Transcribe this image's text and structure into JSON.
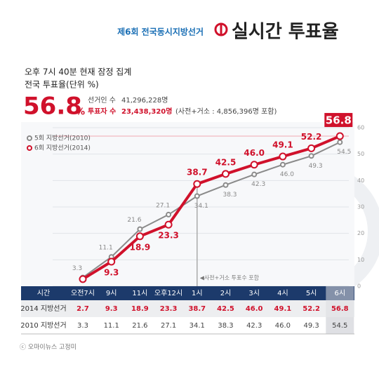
{
  "header": {
    "election": "제6회 전국동시지방선거",
    "title": "실시간 투표율",
    "time_note": "오후 7시 40분 현재 잠정 집계",
    "unit_note": "전국 투표율(단위 %)",
    "headline": 56.8,
    "headline_unit": "%",
    "voters_label": "선거인 수",
    "voters": "41,296,228명",
    "turnout_label": "투표자 수",
    "turnout": "23,438,320명",
    "turnout_note": "(사전+거소 : 4,856,396명 포함)"
  },
  "chart_data": {
    "type": "line",
    "categories": [
      "오전7시",
      "9시",
      "11시",
      "오후12시",
      "1시",
      "2시",
      "3시",
      "4시",
      "5시",
      "6시"
    ],
    "series": [
      {
        "name": "6회 지방선거(2014)",
        "row_label": "2014 지방선거",
        "color": "#d0112b",
        "values": [
          2.7,
          9.3,
          18.9,
          23.3,
          38.7,
          42.5,
          46.0,
          49.1,
          52.2,
          56.8
        ],
        "value_labels": [
          "2.7",
          "9.3",
          "18.9",
          "23.3",
          "38.7",
          "42.5",
          "46.0",
          "49.1",
          "52.2",
          "56.8"
        ]
      },
      {
        "name": "5회 지방선거(2010)",
        "row_label": "2010 지방선거",
        "color": "#8a8a8a",
        "values": [
          3.3,
          11.1,
          21.6,
          27.1,
          34.1,
          38.3,
          42.3,
          46.0,
          49.3,
          54.5
        ],
        "value_labels": [
          "3.3",
          "11.1",
          "21.6",
          "27.1",
          "34.1",
          "38.3",
          "42.3",
          "46.0",
          "49.3",
          "54.5"
        ]
      }
    ],
    "ylim": [
      0,
      60
    ],
    "yticks": [
      0,
      10,
      20,
      30,
      40,
      50,
      60
    ],
    "grid": true,
    "table_header": "시간",
    "annotation": "◀사전+거소 투표수 포함"
  },
  "footer": "ⓒ 오마이뉴스 고정미"
}
